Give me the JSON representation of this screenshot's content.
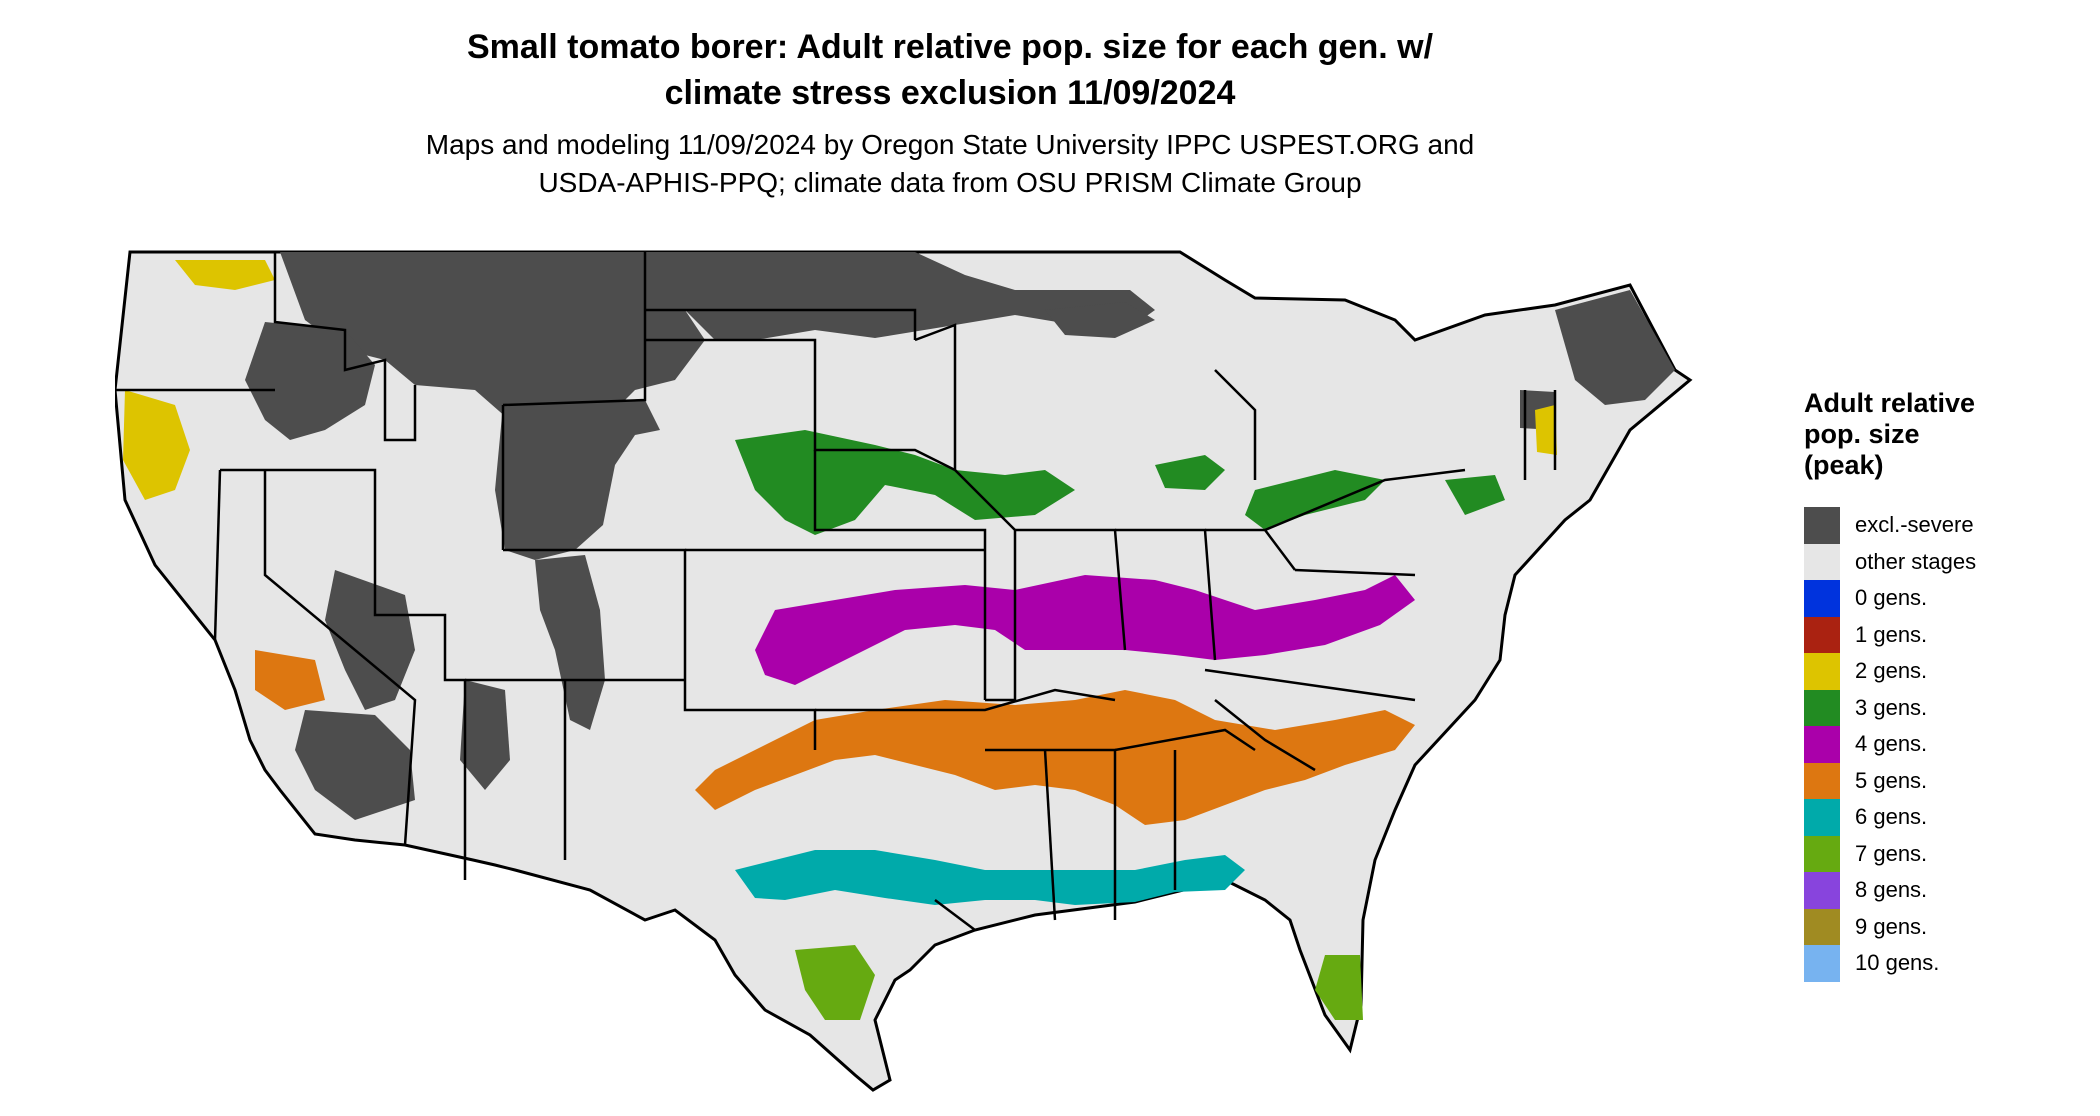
{
  "title_line1": "Small tomato borer: Adult relative pop. size for each gen. w/",
  "title_line2": "climate stress exclusion 11/09/2024",
  "subtitle_line1": "Maps and modeling 11/09/2024 by Oregon State University IPPC USPEST.ORG and",
  "subtitle_line2": "USDA-APHIS-PPQ; climate data from OSU PRISM Climate Group",
  "legend": {
    "title_line1": "Adult relative",
    "title_line2": "pop. size",
    "title_line3": "(peak)",
    "items": [
      {
        "label": "excl.-severe",
        "color": "#4d4d4d"
      },
      {
        "label": "other stages",
        "color": "#e6e6e6"
      },
      {
        "label": "0 gens.",
        "color": "#0033dd"
      },
      {
        "label": "1 gens.",
        "color": "#aa2211"
      },
      {
        "label": "2 gens.",
        "color": "#ddc400"
      },
      {
        "label": "3 gens.",
        "color": "#228b22"
      },
      {
        "label": "4 gens.",
        "color": "#aa00aa"
      },
      {
        "label": "5 gens.",
        "color": "#dd7711"
      },
      {
        "label": "6 gens.",
        "color": "#00aaaa"
      },
      {
        "label": "7 gens.",
        "color": "#66aa11"
      },
      {
        "label": "8 gens.",
        "color": "#8844dd"
      },
      {
        "label": "9 gens.",
        "color": "#a08b22"
      },
      {
        "label": "10 gens.",
        "color": "#77b3f0"
      }
    ]
  }
}
